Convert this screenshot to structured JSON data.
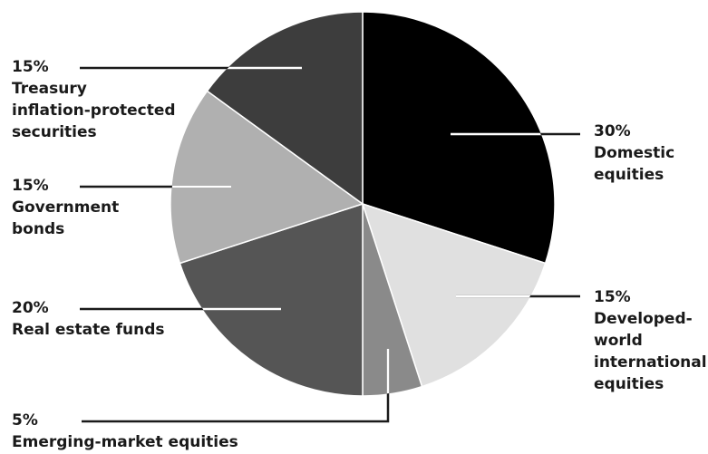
{
  "chart_data": {
    "type": "pie",
    "title": "",
    "slices": [
      {
        "value": 30,
        "percent_label": "30%",
        "label_lines": [
          "Domestic",
          "equities"
        ],
        "color": "#000000"
      },
      {
        "value": 15,
        "percent_label": "15%",
        "label_lines": [
          "Developed-",
          "world",
          "international",
          "equities"
        ],
        "color": "#e0e0e0"
      },
      {
        "value": 5,
        "percent_label": "5%",
        "label_lines": [
          "Emerging-market equities"
        ],
        "color": "#8a8a8a"
      },
      {
        "value": 20,
        "percent_label": "20%",
        "label_lines": [
          "Real estate funds"
        ],
        "color": "#555555"
      },
      {
        "value": 15,
        "percent_label": "15%",
        "label_lines": [
          "Government",
          "bonds"
        ],
        "color": "#b0b0b0"
      },
      {
        "value": 15,
        "percent_label": "15%",
        "label_lines": [
          "Treasury",
          "inflation-protected",
          "securities"
        ],
        "color": "#3d3d3d"
      }
    ]
  }
}
